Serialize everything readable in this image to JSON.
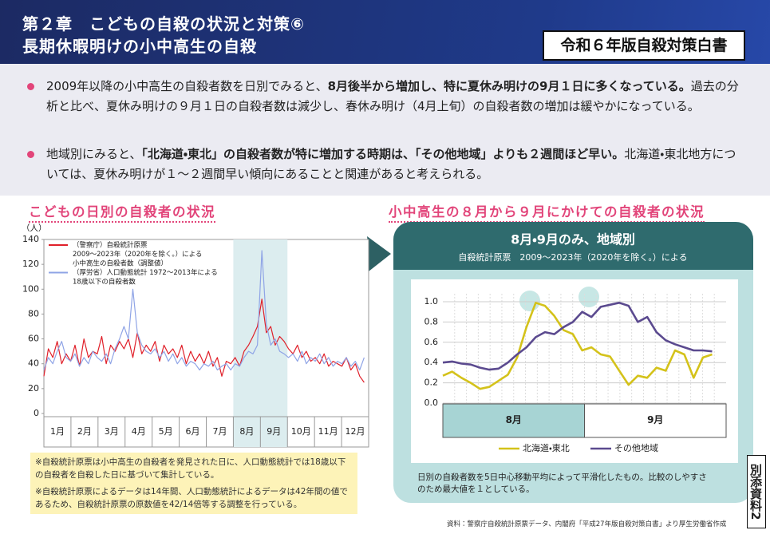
{
  "header": {
    "title_line1": "第２章　こどもの自殺の状況と対策⑥",
    "title_line2": "長期休暇明けの小中高生の自殺",
    "badge": "令和６年版自殺対策白書"
  },
  "bullets": [
    [
      "2009年以降の小中高生の自殺者数を日別でみると、",
      "8月後半から増加し、特に夏休み明けの9月１日に多くなっている。",
      "過去の分析と比べ、夏休み明けの９月１日の自殺者数は減少し、春休み明け（4月上旬）の自殺者数の増加は緩やかになっている。"
    ],
    [
      "地域別にみると、",
      "「北海道・東北」の自殺者数が特に増加する時期は、「その他地域」よりも２週間ほど早い。",
      "北海道・東北地方については、夏休み明けが１～２週間早い傾向にあることと関連があると考えられる。"
    ]
  ],
  "left_title": "こどもの日別の自殺者の状況",
  "right_title": "小中高生の８月から９月にかけての自殺者の状況",
  "right_panel": {
    "title": "8月・9月のみ、地域別",
    "subtitle": "自殺統計原票　2009～2023年（2020年を除く。）による",
    "caption": [
      "日別の自殺者数を5日中心移動平均によって平滑化したもの。比較のしやすさ",
      "のため最大値を１としている。"
    ]
  },
  "notes": [
    "※自殺統計原票は小中高生の自殺者を発見された日に、人口動態統計では18歳以下の自殺者を自殺した日に基づいて集計している。",
    "※自殺統計原票によるデータは14年間、人口動態統計によるデータは42年間の値であるため、自殺統計原票の原数値を42/14倍等する調整を行っている。"
  ],
  "source": "資料：警察庁自殺統計原票データ、内閣府「平成27年版自殺対策白書」より厚生労働省作成",
  "side_tab": "別添資料2",
  "chart_data": [
    {
      "type": "line",
      "y_label": "（人）",
      "categories": [
        "1月",
        "2月",
        "3月",
        "4月",
        "5月",
        "6月",
        "7月",
        "8月",
        "9月",
        "10月",
        "11月",
        "12月"
      ],
      "x": [
        0,
        5,
        10,
        15,
        20,
        25,
        30,
        35,
        40,
        45,
        50,
        55,
        60,
        65,
        70,
        75,
        80,
        85,
        90,
        95,
        100,
        105,
        110,
        115,
        120,
        125,
        130,
        135,
        140,
        145,
        150,
        155,
        160,
        165,
        170,
        175,
        180,
        185,
        190,
        195,
        200,
        205,
        210,
        215,
        220,
        225,
        230,
        235,
        240,
        245,
        250,
        255,
        260,
        265,
        270,
        275,
        280,
        285,
        290,
        295,
        300,
        305,
        310,
        315,
        320,
        325,
        330,
        335,
        340,
        345,
        350,
        355,
        360
      ],
      "xlim": [
        0,
        365
      ],
      "ylim": [
        0,
        140
      ],
      "yticks": [
        0,
        20,
        40,
        60,
        80,
        100,
        120,
        140
      ],
      "grid": false,
      "legend": "upper left",
      "series": [
        {
          "name": [
            "（警察庁）自殺統計原票",
            "2009～2023年（2020年を除く。）による",
            "小中高生の自殺者数（調整値）"
          ],
          "color": "#e0202a",
          "values": [
            30,
            52,
            45,
            58,
            40,
            48,
            42,
            55,
            38,
            60,
            45,
            50,
            48,
            62,
            40,
            55,
            50,
            58,
            52,
            60,
            45,
            65,
            48,
            55,
            50,
            58,
            42,
            55,
            48,
            52,
            45,
            55,
            40,
            50,
            42,
            48,
            40,
            50,
            38,
            45,
            30,
            42,
            40,
            45,
            38,
            50,
            55,
            62,
            70,
            92,
            65,
            70,
            55,
            62,
            58,
            52,
            48,
            55,
            45,
            50,
            42,
            45,
            40,
            48,
            38,
            42,
            40,
            38,
            45,
            35,
            40,
            30,
            25
          ]
        },
        {
          "name": [
            "（厚労省）人口動態統計 1972～2013年による",
            "18歳以下の自殺者数"
          ],
          "color": "#8fa4e6",
          "values": [
            35,
            45,
            40,
            50,
            58,
            45,
            42,
            48,
            38,
            45,
            40,
            50,
            45,
            42,
            48,
            40,
            52,
            60,
            70,
            60,
            100,
            65,
            55,
            50,
            48,
            52,
            45,
            50,
            42,
            48,
            40,
            45,
            38,
            42,
            40,
            35,
            40,
            38,
            42,
            35,
            38,
            40,
            35,
            40,
            38,
            45,
            50,
            48,
            55,
            131,
            72,
            55,
            60,
            50,
            48,
            45,
            48,
            42,
            50,
            40,
            45,
            42,
            48,
            40,
            45,
            38,
            42,
            40,
            45,
            38,
            42,
            35,
            45
          ]
        }
      ]
    },
    {
      "type": "line",
      "categories": [
        "8月",
        "9月"
      ],
      "x": [
        0,
        2,
        4,
        6,
        8,
        10,
        12,
        14,
        16,
        18,
        20,
        22,
        24,
        26,
        28,
        30,
        32,
        34,
        36,
        38,
        40,
        42,
        44,
        46,
        48,
        50,
        52,
        54,
        56,
        58
      ],
      "xlim": [
        0,
        61
      ],
      "ylim": [
        0,
        1
      ],
      "yticks": [
        {
          "value": 0,
          "label": "0.0"
        },
        0.2,
        0.4,
        0.6,
        0.8,
        {
          "value": 1,
          "label": "1.0"
        }
      ],
      "grid": true,
      "legend": "bottom",
      "series": [
        {
          "name": "北海道・東北",
          "color": "#d4c21a",
          "values": [
            0.27,
            0.31,
            0.25,
            0.2,
            0.14,
            0.16,
            0.22,
            0.28,
            0.45,
            0.75,
            0.99,
            0.96,
            0.86,
            0.72,
            0.68,
            0.52,
            0.55,
            0.48,
            0.46,
            0.32,
            0.18,
            0.27,
            0.25,
            0.35,
            0.32,
            0.52,
            0.48,
            0.25,
            0.45,
            0.48
          ]
        },
        {
          "name": "その他地域",
          "color": "#5b4a8f",
          "values": [
            0.4,
            0.41,
            0.39,
            0.38,
            0.35,
            0.33,
            0.34,
            0.4,
            0.48,
            0.55,
            0.65,
            0.7,
            0.68,
            0.75,
            0.8,
            0.9,
            0.85,
            0.95,
            0.97,
            0.99,
            0.96,
            0.8,
            0.85,
            0.7,
            0.62,
            0.58,
            0.55,
            0.52,
            0.52,
            0.51
          ]
        }
      ]
    }
  ]
}
